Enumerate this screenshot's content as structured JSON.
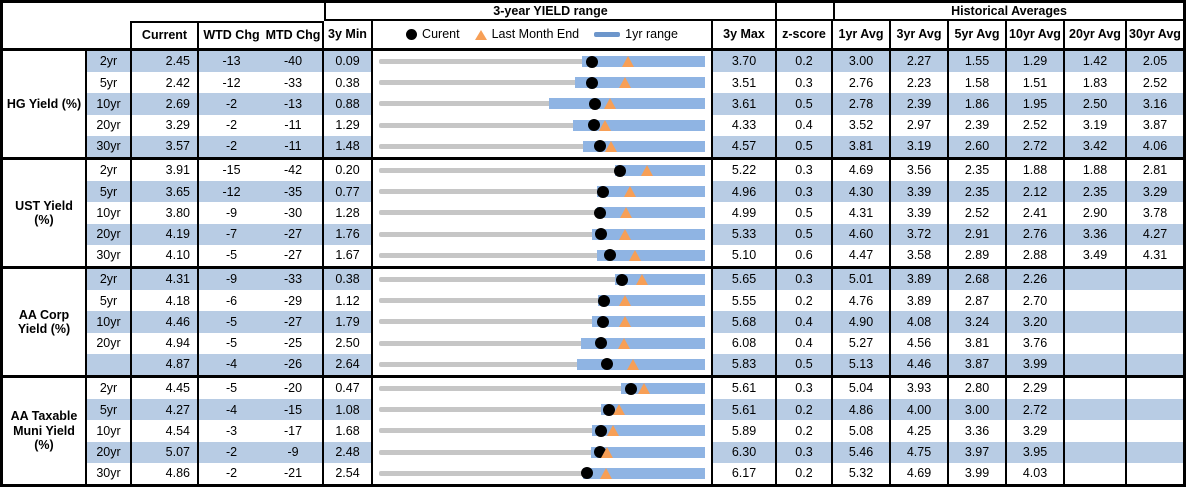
{
  "header": {
    "yield_range_title": "3-year YIELD range",
    "historical_title": "Historical Averages",
    "col_current": "Current",
    "col_wtd": "WTD Chg",
    "col_mtd": "MTD Chg",
    "col_3y_min": "3y Min",
    "col_3y_max": "3y Max",
    "col_zscore": "z-score",
    "avg_cols": [
      "1yr Avg",
      "3yr Avg",
      "5yr Avg",
      "10yr Avg",
      "20yr Avg",
      "30yr Avg"
    ],
    "legend": {
      "current": "Curent",
      "last_month": "Last Month End",
      "range": "1yr range"
    }
  },
  "colors": {
    "band": "#B8CCE4",
    "bar": "#8FB4E3",
    "tri": "#F79F56",
    "track": "#C6C6C6",
    "swatch": "#6D96CB"
  },
  "chart_data": {
    "type": "range-dot-plot",
    "note": "Each row: gray track spans 3y Min..3y Max; blue bar = 1yr range (yr1_min..yr1_max est. from pixels); black dot = Current; orange triangle = Last Month End (current - MTD/100).",
    "groups": [
      {
        "label": "HG Yield (%)",
        "rows": [
          {
            "tenor": "2yr",
            "current": "2.45",
            "wtd_chg": "-13",
            "mtd_chg": "-40",
            "min_3y": "0.09",
            "max_3y": "3.70",
            "zscore": "0.2",
            "yr1_min": "2.34",
            "yr1_max": "3.70",
            "avgs": [
              "3.00",
              "2.27",
              "1.55",
              "1.29",
              "1.42",
              "2.05"
            ]
          },
          {
            "tenor": "5yr",
            "current": "2.42",
            "wtd_chg": "-12",
            "mtd_chg": "-33",
            "min_3y": "0.38",
            "max_3y": "3.51",
            "zscore": "0.3",
            "yr1_min": "2.26",
            "yr1_max": "3.51",
            "avgs": [
              "2.76",
              "2.23",
              "1.58",
              "1.51",
              "1.83",
              "2.52"
            ]
          },
          {
            "tenor": "10yr",
            "current": "2.69",
            "wtd_chg": "-2",
            "mtd_chg": "-13",
            "min_3y": "0.88",
            "max_3y": "3.61",
            "zscore": "0.5",
            "yr1_min": "2.30",
            "yr1_max": "3.61",
            "avgs": [
              "2.78",
              "2.39",
              "1.86",
              "1.95",
              "2.50",
              "3.16"
            ]
          },
          {
            "tenor": "20yr",
            "current": "3.29",
            "wtd_chg": "-2",
            "mtd_chg": "-11",
            "min_3y": "1.29",
            "max_3y": "4.33",
            "zscore": "0.4",
            "yr1_min": "3.10",
            "yr1_max": "4.33",
            "avgs": [
              "3.52",
              "2.97",
              "2.39",
              "2.52",
              "3.19",
              "3.87"
            ]
          },
          {
            "tenor": "30yr",
            "current": "3.57",
            "wtd_chg": "-2",
            "mtd_chg": "-11",
            "min_3y": "1.48",
            "max_3y": "4.57",
            "zscore": "0.5",
            "yr1_min": "3.41",
            "yr1_max": "4.57",
            "avgs": [
              "3.81",
              "3.19",
              "2.60",
              "2.72",
              "3.42",
              "4.06"
            ]
          }
        ]
      },
      {
        "label": "UST Yield (%)",
        "rows": [
          {
            "tenor": "2yr",
            "current": "3.91",
            "wtd_chg": "-15",
            "mtd_chg": "-42",
            "min_3y": "0.20",
            "max_3y": "5.22",
            "zscore": "0.3",
            "yr1_min": "3.83",
            "yr1_max": "5.22",
            "avgs": [
              "4.69",
              "3.56",
              "2.35",
              "1.88",
              "1.88",
              "2.81"
            ]
          },
          {
            "tenor": "5yr",
            "current": "3.65",
            "wtd_chg": "-12",
            "mtd_chg": "-35",
            "min_3y": "0.77",
            "max_3y": "4.96",
            "zscore": "0.3",
            "yr1_min": "3.57",
            "yr1_max": "4.96",
            "avgs": [
              "4.30",
              "3.39",
              "2.35",
              "2.12",
              "2.35",
              "3.29"
            ]
          },
          {
            "tenor": "10yr",
            "current": "3.80",
            "wtd_chg": "-9",
            "mtd_chg": "-30",
            "min_3y": "1.28",
            "max_3y": "4.99",
            "zscore": "0.5",
            "yr1_min": "3.76",
            "yr1_max": "4.99",
            "avgs": [
              "4.31",
              "3.39",
              "2.52",
              "2.41",
              "2.90",
              "3.78"
            ]
          },
          {
            "tenor": "20yr",
            "current": "4.19",
            "wtd_chg": "-7",
            "mtd_chg": "-27",
            "min_3y": "1.76",
            "max_3y": "5.33",
            "zscore": "0.5",
            "yr1_min": "4.09",
            "yr1_max": "5.33",
            "avgs": [
              "4.60",
              "3.72",
              "2.91",
              "2.76",
              "3.36",
              "4.27"
            ]
          },
          {
            "tenor": "30yr",
            "current": "4.10",
            "wtd_chg": "-5",
            "mtd_chg": "-27",
            "min_3y": "1.67",
            "max_3y": "5.10",
            "zscore": "0.6",
            "yr1_min": "3.96",
            "yr1_max": "5.10",
            "avgs": [
              "4.47",
              "3.58",
              "2.89",
              "2.88",
              "3.49",
              "4.31"
            ]
          }
        ]
      },
      {
        "label": "AA Corp Yield (%)",
        "rows": [
          {
            "tenor": "2yr",
            "current": "4.31",
            "wtd_chg": "-9",
            "mtd_chg": "-33",
            "min_3y": "0.38",
            "max_3y": "5.65",
            "zscore": "0.3",
            "yr1_min": "4.19",
            "yr1_max": "5.65",
            "avgs": [
              "5.01",
              "3.89",
              "2.68",
              "2.26",
              "",
              ""
            ]
          },
          {
            "tenor": "5yr",
            "current": "4.18",
            "wtd_chg": "-6",
            "mtd_chg": "-29",
            "min_3y": "1.12",
            "max_3y": "5.55",
            "zscore": "0.2",
            "yr1_min": "4.10",
            "yr1_max": "5.55",
            "avgs": [
              "4.76",
              "3.89",
              "2.87",
              "2.70",
              "",
              ""
            ]
          },
          {
            "tenor": "10yr",
            "current": "4.46",
            "wtd_chg": "-5",
            "mtd_chg": "-27",
            "min_3y": "1.79",
            "max_3y": "5.68",
            "zscore": "0.4",
            "yr1_min": "4.33",
            "yr1_max": "5.68",
            "avgs": [
              "4.90",
              "4.08",
              "3.24",
              "3.20",
              "",
              ""
            ]
          },
          {
            "tenor": "20yr",
            "current": "4.94",
            "wtd_chg": "-5",
            "mtd_chg": "-25",
            "min_3y": "2.50",
            "max_3y": "6.08",
            "zscore": "0.4",
            "yr1_min": "4.72",
            "yr1_max": "6.08",
            "avgs": [
              "5.27",
              "4.56",
              "3.81",
              "3.76",
              "",
              ""
            ]
          },
          {
            "tenor": "",
            "current": "4.87",
            "wtd_chg": "-4",
            "mtd_chg": "-26",
            "min_3y": "2.64",
            "max_3y": "5.83",
            "zscore": "0.5",
            "yr1_min": "4.58",
            "yr1_max": "5.83",
            "avgs": [
              "5.13",
              "4.46",
              "3.87",
              "3.99",
              "",
              ""
            ]
          }
        ]
      },
      {
        "label": "AA Taxable Muni Yield (%)",
        "rows": [
          {
            "tenor": "2yr",
            "current": "4.45",
            "wtd_chg": "-5",
            "mtd_chg": "-20",
            "min_3y": "0.47",
            "max_3y": "5.61",
            "zscore": "0.3",
            "yr1_min": "4.28",
            "yr1_max": "5.61",
            "avgs": [
              "5.04",
              "3.93",
              "2.80",
              "2.29",
              "",
              ""
            ]
          },
          {
            "tenor": "5yr",
            "current": "4.27",
            "wtd_chg": "-4",
            "mtd_chg": "-15",
            "min_3y": "1.08",
            "max_3y": "5.61",
            "zscore": "0.2",
            "yr1_min": "4.16",
            "yr1_max": "5.61",
            "avgs": [
              "4.86",
              "4.00",
              "3.00",
              "2.72",
              "",
              ""
            ]
          },
          {
            "tenor": "10yr",
            "current": "4.54",
            "wtd_chg": "-3",
            "mtd_chg": "-17",
            "min_3y": "1.68",
            "max_3y": "5.89",
            "zscore": "0.2",
            "yr1_min": "4.43",
            "yr1_max": "5.89",
            "avgs": [
              "5.08",
              "4.25",
              "3.36",
              "3.29",
              "",
              ""
            ]
          },
          {
            "tenor": "20yr",
            "current": "5.07",
            "wtd_chg": "-2",
            "mtd_chg": "-9",
            "min_3y": "2.48",
            "max_3y": "6.30",
            "zscore": "0.3",
            "yr1_min": "4.96",
            "yr1_max": "6.30",
            "avgs": [
              "5.46",
              "4.75",
              "3.97",
              "3.95",
              "",
              ""
            ]
          },
          {
            "tenor": "30yr",
            "current": "4.86",
            "wtd_chg": "-2",
            "mtd_chg": "-21",
            "min_3y": "2.54",
            "max_3y": "6.17",
            "zscore": "0.2",
            "yr1_min": "4.81",
            "yr1_max": "6.17",
            "avgs": [
              "5.32",
              "4.69",
              "3.99",
              "4.03",
              "",
              ""
            ]
          }
        ]
      }
    ]
  }
}
